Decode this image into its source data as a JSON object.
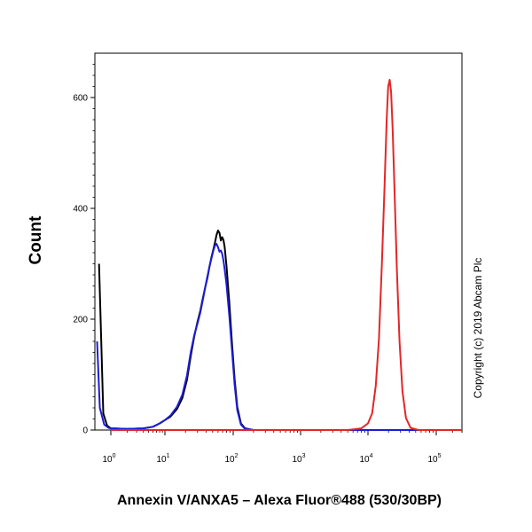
{
  "chart_data": {
    "type": "line",
    "xlabel": "Annexin V/ANXA5 – Alexa Fluor®488 (530/30BP)",
    "ylabel": "Count",
    "x_scale": "biexponential",
    "x_tick_labels": [
      {
        "base": "10",
        "exp": "0",
        "value": 1
      },
      {
        "base": "10",
        "exp": "1",
        "value": 10
      },
      {
        "base": "10",
        "exp": "2",
        "value": 100
      },
      {
        "base": "10",
        "exp": "3",
        "value": 1000
      },
      {
        "base": "10",
        "exp": "4",
        "value": 10000
      },
      {
        "base": "10",
        "exp": "5",
        "value": 100000
      }
    ],
    "y_ticks": [
      0,
      200,
      400,
      600
    ],
    "ylim": [
      0,
      680
    ],
    "grid": false,
    "annotation": "Copyright (c) 2019 Abcam Plc",
    "series": [
      {
        "color": "#000000",
        "points": [
          [
            0.6,
            300
          ],
          [
            0.72,
            30
          ],
          [
            0.85,
            8
          ],
          [
            1,
            3
          ],
          [
            2,
            2
          ],
          [
            4,
            3
          ],
          [
            6,
            6
          ],
          [
            8,
            12
          ],
          [
            10,
            18
          ],
          [
            12,
            24
          ],
          [
            15,
            38
          ],
          [
            18,
            58
          ],
          [
            21,
            90
          ],
          [
            24,
            135
          ],
          [
            27,
            170
          ],
          [
            30,
            195
          ],
          [
            33,
            215
          ],
          [
            36,
            238
          ],
          [
            39,
            258
          ],
          [
            42,
            275
          ],
          [
            45,
            295
          ],
          [
            48,
            312
          ],
          [
            51,
            325
          ],
          [
            54,
            338
          ],
          [
            57,
            352
          ],
          [
            60,
            360
          ],
          [
            63,
            356
          ],
          [
            66,
            342
          ],
          [
            69,
            348
          ],
          [
            72,
            343
          ],
          [
            75,
            330
          ],
          [
            80,
            295
          ],
          [
            88,
            228
          ],
          [
            96,
            158
          ],
          [
            105,
            92
          ],
          [
            115,
            42
          ],
          [
            130,
            12
          ],
          [
            150,
            3
          ],
          [
            200,
            0
          ],
          [
            100000,
            0
          ],
          [
            300000,
            0
          ]
        ]
      },
      {
        "color": "#1c1cd6",
        "points": [
          [
            0.55,
            160
          ],
          [
            0.62,
            40
          ],
          [
            0.75,
            10
          ],
          [
            0.9,
            4
          ],
          [
            1,
            3
          ],
          [
            2,
            2
          ],
          [
            4,
            3
          ],
          [
            6,
            6
          ],
          [
            8,
            12
          ],
          [
            10,
            18
          ],
          [
            12,
            26
          ],
          [
            15,
            42
          ],
          [
            18,
            64
          ],
          [
            21,
            98
          ],
          [
            24,
            142
          ],
          [
            27,
            172
          ],
          [
            30,
            192
          ],
          [
            33,
            212
          ],
          [
            36,
            235
          ],
          [
            39,
            258
          ],
          [
            42,
            278
          ],
          [
            45,
            295
          ],
          [
            48,
            310
          ],
          [
            51,
            323
          ],
          [
            54,
            333
          ],
          [
            57,
            336
          ],
          [
            60,
            330
          ],
          [
            63,
            322
          ],
          [
            66,
            324
          ],
          [
            69,
            318
          ],
          [
            72,
            306
          ],
          [
            75,
            290
          ],
          [
            80,
            262
          ],
          [
            88,
            205
          ],
          [
            96,
            145
          ],
          [
            105,
            82
          ],
          [
            115,
            36
          ],
          [
            130,
            10
          ],
          [
            150,
            2
          ],
          [
            200,
            0
          ],
          [
            100000,
            0
          ],
          [
            300000,
            0
          ]
        ]
      },
      {
        "color": "#e32626",
        "points": [
          [
            1,
            0
          ],
          [
            5000,
            0
          ],
          [
            8000,
            3
          ],
          [
            10000,
            12
          ],
          [
            11500,
            30
          ],
          [
            13000,
            80
          ],
          [
            14500,
            165
          ],
          [
            16000,
            300
          ],
          [
            17500,
            440
          ],
          [
            18800,
            560
          ],
          [
            19800,
            620
          ],
          [
            20800,
            632
          ],
          [
            21800,
            610
          ],
          [
            23000,
            540
          ],
          [
            24500,
            430
          ],
          [
            26500,
            290
          ],
          [
            29000,
            160
          ],
          [
            32000,
            70
          ],
          [
            36000,
            22
          ],
          [
            42000,
            4
          ],
          [
            55000,
            0
          ],
          [
            300000,
            0
          ]
        ]
      }
    ]
  }
}
